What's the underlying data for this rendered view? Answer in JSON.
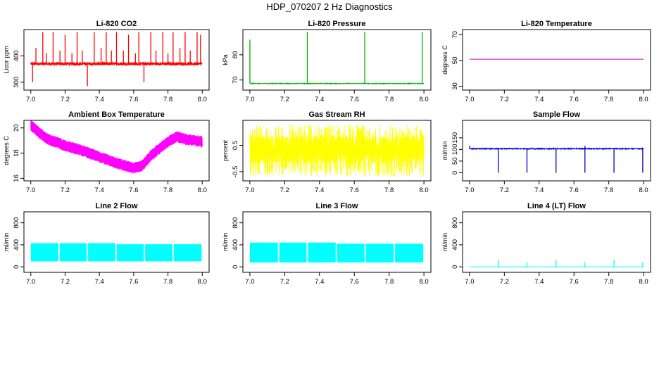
{
  "page_title": "HDP_070207  2 Hz Diagnostics",
  "chart_data": [
    {
      "type": "line",
      "title": "Li-820 CO2",
      "ylabel": "Licor ppm",
      "color": "#ff0000",
      "xlim": [
        6.96,
        8.04
      ],
      "ylim": [
        270,
        500
      ],
      "xticks": [
        "7.0",
        "7.2",
        "7.4",
        "7.6",
        "7.8",
        "8.0"
      ],
      "yticks": [
        {
          "v": 300,
          "label": "300"
        },
        {
          "v": 400,
          "label": "400"
        }
      ],
      "series": {
        "kind": "noise",
        "base": 370,
        "amp": 6,
        "count": 1400,
        "spikes": [
          [
            7.01,
            300
          ],
          [
            7.03,
            430
          ],
          [
            7.07,
            490
          ],
          [
            7.09,
            410
          ],
          [
            7.13,
            490
          ],
          [
            7.17,
            420
          ],
          [
            7.2,
            480
          ],
          [
            7.24,
            410
          ],
          [
            7.27,
            490
          ],
          [
            7.3,
            420
          ],
          [
            7.33,
            285
          ],
          [
            7.37,
            490
          ],
          [
            7.41,
            430
          ],
          [
            7.44,
            490
          ],
          [
            7.47,
            420
          ],
          [
            7.5,
            490
          ],
          [
            7.54,
            420
          ],
          [
            7.57,
            480
          ],
          [
            7.61,
            410
          ],
          [
            7.63,
            490
          ],
          [
            7.66,
            300
          ],
          [
            7.7,
            490
          ],
          [
            7.73,
            420
          ],
          [
            7.77,
            490
          ],
          [
            7.8,
            410
          ],
          [
            7.83,
            490
          ],
          [
            7.87,
            430
          ],
          [
            7.9,
            490
          ],
          [
            7.93,
            420
          ],
          [
            7.97,
            490
          ],
          [
            7.99,
            480
          ]
        ]
      }
    },
    {
      "type": "line",
      "title": "Li-820 Pressure",
      "ylabel": "kPa",
      "color": "#00b000",
      "xlim": [
        6.96,
        8.04
      ],
      "ylim": [
        66,
        90
      ],
      "xticks": [
        "7.0",
        "7.2",
        "7.4",
        "7.6",
        "7.8",
        "8.0"
      ],
      "yticks": [
        {
          "v": 70,
          "label": "70"
        },
        {
          "v": 80,
          "label": "80"
        }
      ],
      "series": {
        "kind": "noise",
        "base": 68.6,
        "amp": 0.15,
        "count": 700,
        "spikes": [
          [
            7.0,
            86
          ],
          [
            7.33,
            89
          ],
          [
            7.66,
            89
          ],
          [
            7.99,
            89
          ]
        ]
      }
    },
    {
      "type": "line",
      "title": "Li-820 Temperature",
      "ylabel": "degrees C",
      "color": "#cc00cc",
      "xlim": [
        6.96,
        8.04
      ],
      "ylim": [
        27,
        74
      ],
      "xticks": [
        "7.0",
        "7.2",
        "7.4",
        "7.6",
        "7.8",
        "8.0"
      ],
      "yticks": [
        {
          "v": 30,
          "label": "30"
        },
        {
          "v": 50,
          "label": "50"
        },
        {
          "v": 70,
          "label": "70"
        }
      ],
      "series": {
        "kind": "flat",
        "value": 51
      }
    },
    {
      "type": "line",
      "title": "Ambient Box Temperature",
      "ylabel": "degrees C",
      "color": "#ff00ff",
      "xlim": [
        6.96,
        8.04
      ],
      "ylim": [
        15.8,
        20.6
      ],
      "xticks": [
        "7.0",
        "7.2",
        "7.4",
        "7.6",
        "7.8",
        "8.0"
      ],
      "yticks": [
        {
          "v": 16,
          "label": "16"
        },
        {
          "v": 18,
          "label": "18"
        },
        {
          "v": 20,
          "label": "20"
        }
      ],
      "series": {
        "kind": "band",
        "count": 1800,
        "width": 0.9,
        "curve": [
          [
            7.0,
            20.2
          ],
          [
            7.05,
            19.6
          ],
          [
            7.1,
            19.1
          ],
          [
            7.2,
            18.6
          ],
          [
            7.3,
            18.2
          ],
          [
            7.4,
            17.7
          ],
          [
            7.5,
            17.2
          ],
          [
            7.6,
            16.8
          ],
          [
            7.65,
            17.0
          ],
          [
            7.7,
            17.8
          ],
          [
            7.8,
            18.9
          ],
          [
            7.85,
            19.3
          ],
          [
            7.9,
            19.1
          ],
          [
            8.0,
            18.9
          ]
        ]
      }
    },
    {
      "type": "line",
      "title": "Gas Stream RH",
      "ylabel": "percent",
      "color": "#ffff00",
      "xlim": [
        6.96,
        8.04
      ],
      "ylim": [
        -0.85,
        1.45
      ],
      "xticks": [
        "7.0",
        "7.2",
        "7.4",
        "7.6",
        "7.8",
        "8.0"
      ],
      "yticks": [
        {
          "v": -0.5,
          "label": "-0.5"
        },
        {
          "v": 0.5,
          "label": "0.5"
        }
      ],
      "series": {
        "kind": "randband",
        "count": 1800,
        "lo": -0.7,
        "hi": 1.3,
        "core_lo": -0.2,
        "core_hi": 0.9
      }
    },
    {
      "type": "line",
      "title": "Sample Flow",
      "ylabel": "ml/min",
      "color": "#0000cc",
      "xlim": [
        6.96,
        8.04
      ],
      "ylim": [
        -35,
        225
      ],
      "xticks": [
        "7.0",
        "7.2",
        "7.4",
        "7.6",
        "7.8",
        "8.0"
      ],
      "yticks": [
        {
          "v": 0,
          "label": "0"
        },
        {
          "v": 50,
          "label": "50"
        },
        {
          "v": 100,
          "label": "100"
        },
        {
          "v": 150,
          "label": "150"
        }
      ],
      "series": {
        "kind": "noise",
        "base": 103,
        "amp": 2,
        "count": 900,
        "spikes": [
          [
            7.0,
            115
          ],
          [
            7.165,
            0
          ],
          [
            7.33,
            0
          ],
          [
            7.497,
            0
          ],
          [
            7.663,
            0
          ],
          [
            7.83,
            0
          ],
          [
            7.995,
            0
          ],
          [
            7.663,
            115
          ]
        ]
      }
    },
    {
      "type": "line",
      "title": "Line 2 Flow",
      "ylabel": "ml/min",
      "color": "#00ffff",
      "xlim": [
        6.96,
        8.04
      ],
      "ylim": [
        -100,
        1000
      ],
      "xticks": [
        "7.0",
        "7.2",
        "7.4",
        "7.6",
        "7.8",
        "8.0"
      ],
      "yticks": [
        {
          "v": 0,
          "label": "0"
        },
        {
          "v": 400,
          "label": "400"
        },
        {
          "v": 800,
          "label": "800"
        }
      ],
      "series": {
        "kind": "block",
        "lo": 100,
        "hi": 420,
        "gaps": [
          7.165,
          7.33,
          7.497,
          7.663,
          7.83
        ]
      }
    },
    {
      "type": "line",
      "title": "Line 3 Flow",
      "ylabel": "ml/min",
      "color": "#00ffff",
      "xlim": [
        6.96,
        8.04
      ],
      "ylim": [
        -100,
        1000
      ],
      "xticks": [
        "7.0",
        "7.2",
        "7.4",
        "7.6",
        "7.8",
        "8.0"
      ],
      "yticks": [
        {
          "v": 0,
          "label": "0"
        },
        {
          "v": 400,
          "label": "400"
        },
        {
          "v": 800,
          "label": "800"
        }
      ],
      "series": {
        "kind": "block",
        "lo": 80,
        "hi": 430,
        "gaps": [
          7.165,
          7.33,
          7.497,
          7.663,
          7.83
        ]
      }
    },
    {
      "type": "line",
      "title": "Line 4 (LT) Flow",
      "ylabel": "ml/min",
      "color": "#00ffff",
      "xlim": [
        6.96,
        8.04
      ],
      "ylim": [
        -100,
        1000
      ],
      "xticks": [
        "7.0",
        "7.2",
        "7.4",
        "7.6",
        "7.8",
        "8.0"
      ],
      "yticks": [
        {
          "v": 0,
          "label": "0"
        },
        {
          "v": 400,
          "label": "400"
        },
        {
          "v": 800,
          "label": "800"
        }
      ],
      "series": {
        "kind": "noise",
        "base": 0,
        "amp": 1,
        "count": 400,
        "spikes": [
          [
            7.165,
            130
          ],
          [
            7.33,
            80
          ],
          [
            7.497,
            130
          ],
          [
            7.663,
            80
          ],
          [
            7.83,
            130
          ],
          [
            7.995,
            80
          ]
        ]
      }
    }
  ]
}
